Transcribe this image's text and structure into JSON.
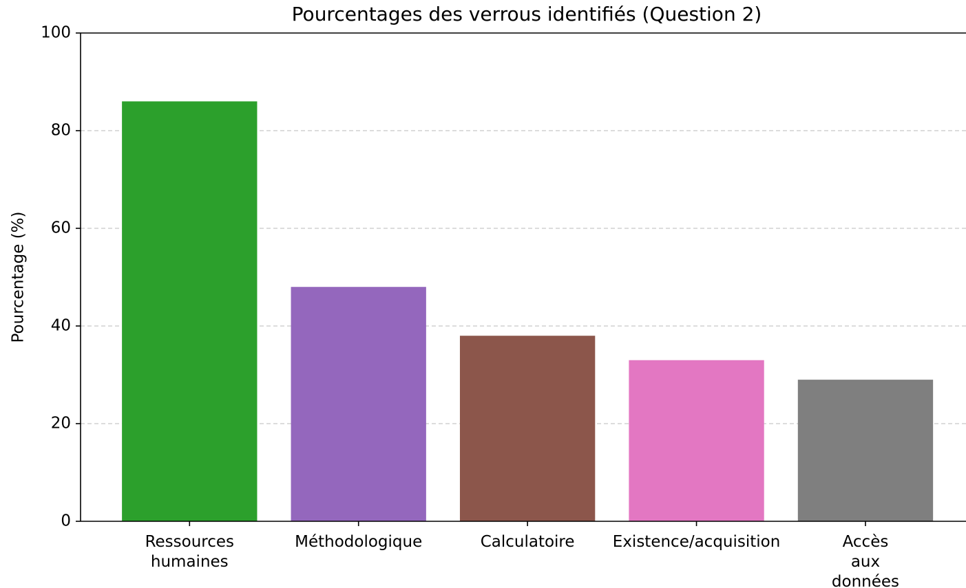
{
  "chart_data": {
    "type": "bar",
    "title": "Pourcentages des verrous identifiés (Question 2)",
    "y_label": "Pourcentage (%)",
    "categories": [
      "Ressources\nhumaines",
      "Méthodologique",
      "Calculatoire",
      "Existence/acquisition",
      "Accès\naux\ndonnées"
    ],
    "values": [
      86,
      48,
      38,
      33,
      29
    ],
    "colors": [
      "#2ca02c",
      "#9467bd",
      "#8c564b",
      "#e377c2",
      "#7f7f7f"
    ],
    "ylim": [
      0,
      100
    ],
    "yticks": [
      0,
      20,
      40,
      60,
      80,
      100
    ],
    "grid": true
  }
}
